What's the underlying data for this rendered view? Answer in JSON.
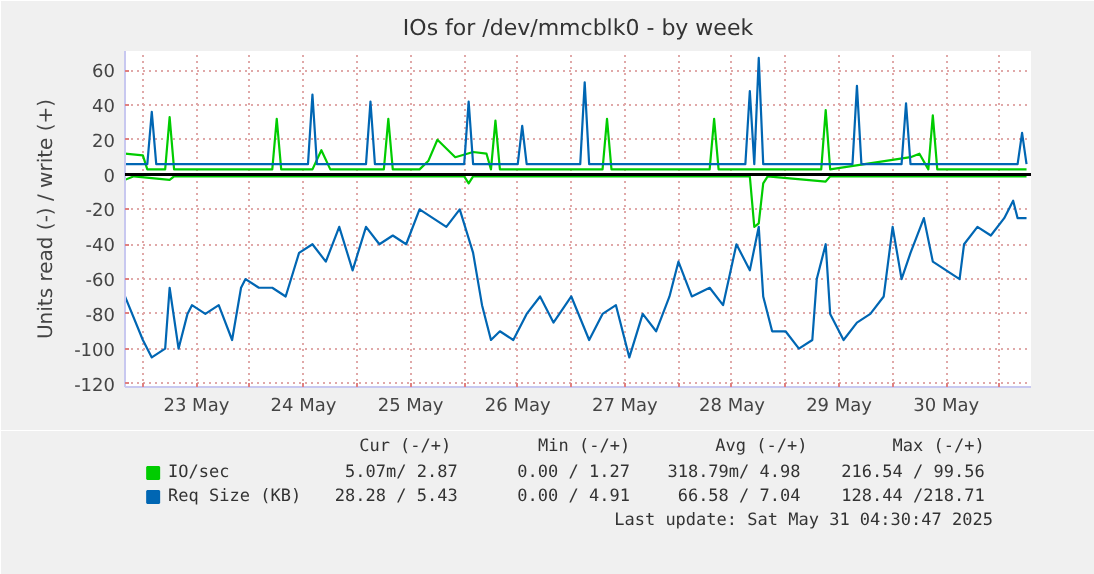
{
  "chart_data": {
    "type": "line",
    "title": "IOs for /dev/mmcblk0 - by week",
    "ylabel": "Units read (-) / write (+)",
    "xlim": [
      "2025-05-22T20:00",
      "2025-05-31T07:00"
    ],
    "xticks": [
      {
        "value": "2025-05-23T00:00",
        "label": null
      },
      {
        "value": "2025-05-23T12:00",
        "label": "23 May"
      },
      {
        "value": "2025-05-24T00:00",
        "label": null
      },
      {
        "value": "2025-05-24T12:00",
        "label": "24 May"
      },
      {
        "value": "2025-05-25T00:00",
        "label": null
      },
      {
        "value": "2025-05-25T12:00",
        "label": "25 May"
      },
      {
        "value": "2025-05-26T00:00",
        "label": null
      },
      {
        "value": "2025-05-26T12:00",
        "label": "26 May"
      },
      {
        "value": "2025-05-27T00:00",
        "label": null
      },
      {
        "value": "2025-05-27T12:00",
        "label": "27 May"
      },
      {
        "value": "2025-05-28T00:00",
        "label": null
      },
      {
        "value": "2025-05-28T12:00",
        "label": "28 May"
      },
      {
        "value": "2025-05-29T00:00",
        "label": null
      },
      {
        "value": "2025-05-29T12:00",
        "label": "29 May"
      },
      {
        "value": "2025-05-30T00:00",
        "label": null
      },
      {
        "value": "2025-05-30T12:00",
        "label": "30 May"
      },
      {
        "value": "2025-05-31T00:00",
        "label": null
      }
    ],
    "ylim": [
      -122,
      71
    ],
    "yticks": [
      -120,
      -100,
      -80,
      -60,
      -40,
      -20,
      0,
      20,
      40,
      60
    ],
    "grid": true,
    "legend": "bottom",
    "line_style": "solid",
    "marker": "none",
    "ref_lines": [
      {
        "axis": "y",
        "value": 0,
        "color": "#000000"
      }
    ],
    "series": [
      {
        "name": "IO/sec",
        "color": "#00cc00",
        "x": [
          "2025-05-22T20:00",
          "2025-05-23T00:00",
          "2025-05-23T01:00",
          "2025-05-23T05:00",
          "2025-05-23T06:00",
          "2025-05-23T07:00",
          "2025-05-24T05:00",
          "2025-05-24T06:00",
          "2025-05-24T07:00",
          "2025-05-24T14:00",
          "2025-05-24T16:00",
          "2025-05-24T18:00",
          "2025-05-25T06:00",
          "2025-05-25T07:00",
          "2025-05-25T08:00",
          "2025-05-25T14:00",
          "2025-05-25T16:00",
          "2025-05-25T18:00",
          "2025-05-25T22:00",
          "2025-05-26T02:00",
          "2025-05-26T05:00",
          "2025-05-26T06:00",
          "2025-05-26T07:00",
          "2025-05-26T08:00",
          "2025-05-27T07:00",
          "2025-05-27T08:00",
          "2025-05-27T09:00",
          "2025-05-28T07:00",
          "2025-05-28T08:00",
          "2025-05-28T09:00",
          "2025-05-29T08:00",
          "2025-05-29T09:00",
          "2025-05-29T10:00",
          "2025-05-30T04:00",
          "2025-05-30T06:00",
          "2025-05-30T08:00",
          "2025-05-30T09:00",
          "2025-05-30T10:00",
          "2025-05-31T06:00"
        ],
        "values": [
          12,
          11,
          3,
          3,
          33,
          3,
          3,
          32,
          3,
          3,
          14,
          3,
          3,
          32,
          3,
          3,
          8,
          20,
          10,
          13,
          12,
          3,
          31,
          3,
          3,
          32,
          3,
          3,
          32,
          3,
          3,
          37,
          3,
          10,
          12,
          3,
          34,
          3,
          3
        ]
      },
      {
        "color": "#00cc00",
        "x": [
          "2025-05-22T20:00",
          "2025-05-22T22:00",
          "2025-05-23T06:00",
          "2025-05-23T07:00",
          "2025-05-26T00:00",
          "2025-05-26T01:00",
          "2025-05-26T02:00",
          "2025-05-28T16:00",
          "2025-05-28T17:00",
          "2025-05-28T18:00",
          "2025-05-28T19:00",
          "2025-05-28T20:00",
          "2025-05-29T09:00",
          "2025-05-29T10:00",
          "2025-05-31T06:00"
        ],
        "values": [
          -3,
          -1,
          -3,
          -1,
          -1,
          -5,
          -1,
          -1,
          -30,
          -28,
          -5,
          -1,
          -4,
          -1,
          -1
        ]
      },
      {
        "name": "Req Size (KB)",
        "color": "#0066b3",
        "x": [
          "2025-05-22T20:00",
          "2025-05-23T01:00",
          "2025-05-23T02:00",
          "2025-05-23T03:00",
          "2025-05-24T13:00",
          "2025-05-24T14:00",
          "2025-05-24T15:00",
          "2025-05-25T02:00",
          "2025-05-25T03:00",
          "2025-05-25T04:00",
          "2025-05-26T00:00",
          "2025-05-26T01:00",
          "2025-05-26T02:00",
          "2025-05-26T12:00",
          "2025-05-26T13:00",
          "2025-05-26T14:00",
          "2025-05-27T02:00",
          "2025-05-27T03:00",
          "2025-05-27T04:00",
          "2025-05-28T15:00",
          "2025-05-28T16:00",
          "2025-05-28T17:00",
          "2025-05-28T18:00",
          "2025-05-28T19:00",
          "2025-05-29T15:00",
          "2025-05-29T16:00",
          "2025-05-29T17:00",
          "2025-05-30T02:00",
          "2025-05-30T03:00",
          "2025-05-30T04:00",
          "2025-05-31T04:00",
          "2025-05-31T05:00",
          "2025-05-31T06:00"
        ],
        "values": [
          6,
          6,
          36,
          6,
          6,
          46,
          6,
          6,
          42,
          6,
          6,
          42,
          6,
          6,
          28,
          6,
          6,
          53,
          6,
          6,
          48,
          6,
          67,
          6,
          6,
          51,
          6,
          6,
          41,
          6,
          6,
          24,
          6
        ]
      },
      {
        "color": "#0066b3",
        "x": [
          "2025-05-22T20:00",
          "2025-05-23T00:00",
          "2025-05-23T02:00",
          "2025-05-23T05:00",
          "2025-05-23T06:00",
          "2025-05-23T08:00",
          "2025-05-23T10:00",
          "2025-05-23T11:00",
          "2025-05-23T14:00",
          "2025-05-23T17:00",
          "2025-05-23T20:00",
          "2025-05-23T22:00",
          "2025-05-23T23:00",
          "2025-05-24T02:00",
          "2025-05-24T05:00",
          "2025-05-24T08:00",
          "2025-05-24T11:00",
          "2025-05-24T14:00",
          "2025-05-24T17:00",
          "2025-05-24T20:00",
          "2025-05-24T23:00",
          "2025-05-25T02:00",
          "2025-05-25T05:00",
          "2025-05-25T08:00",
          "2025-05-25T11:00",
          "2025-05-25T14:00",
          "2025-05-25T17:00",
          "2025-05-25T20:00",
          "2025-05-25T23:00",
          "2025-05-26T02:00",
          "2025-05-26T04:00",
          "2025-05-26T06:00",
          "2025-05-26T08:00",
          "2025-05-26T11:00",
          "2025-05-26T14:00",
          "2025-05-26T17:00",
          "2025-05-26T20:00",
          "2025-05-27T00:00",
          "2025-05-27T04:00",
          "2025-05-27T07:00",
          "2025-05-27T10:00",
          "2025-05-27T13:00",
          "2025-05-27T16:00",
          "2025-05-27T19:00",
          "2025-05-27T22:00",
          "2025-05-28T00:00",
          "2025-05-28T03:00",
          "2025-05-28T07:00",
          "2025-05-28T10:00",
          "2025-05-28T13:00",
          "2025-05-28T16:00",
          "2025-05-28T18:00",
          "2025-05-28T19:00",
          "2025-05-28T21:00",
          "2025-05-29T00:00",
          "2025-05-29T03:00",
          "2025-05-29T06:00",
          "2025-05-29T07:00",
          "2025-05-29T09:00",
          "2025-05-29T10:00",
          "2025-05-29T13:00",
          "2025-05-29T16:00",
          "2025-05-29T19:00",
          "2025-05-29T22:00",
          "2025-05-30T00:00",
          "2025-05-30T02:00",
          "2025-05-30T04:00",
          "2025-05-30T07:00",
          "2025-05-30T09:00",
          "2025-05-30T12:00",
          "2025-05-30T15:00",
          "2025-05-30T16:00",
          "2025-05-30T19:00",
          "2025-05-30T22:00",
          "2025-05-31T01:00",
          "2025-05-31T03:00",
          "2025-05-31T04:00",
          "2025-05-31T06:00"
        ],
        "values": [
          -70,
          -95,
          -105,
          -100,
          -65,
          -100,
          -80,
          -75,
          -80,
          -75,
          -95,
          -65,
          -60,
          -65,
          -65,
          -70,
          -45,
          -40,
          -50,
          -30,
          -55,
          -30,
          -40,
          -35,
          -40,
          -20,
          -25,
          -30,
          -20,
          -45,
          -75,
          -95,
          -90,
          -95,
          -80,
          -70,
          -85,
          -70,
          -95,
          -80,
          -75,
          -105,
          -80,
          -90,
          -70,
          -50,
          -70,
          -65,
          -75,
          -40,
          -55,
          -30,
          -70,
          -90,
          -90,
          -100,
          -95,
          -60,
          -40,
          -80,
          -95,
          -85,
          -80,
          -70,
          -30,
          -60,
          -45,
          -25,
          -50,
          -55,
          -60,
          -40,
          -30,
          -35,
          -25,
          -15,
          -25,
          -25
        ]
      }
    ],
    "annotations": [
      "Cur (-/+)",
      "Min (-/+)",
      "Avg (-/+)",
      "Max (-/+)",
      "5.07m/  2.87",
      "0.00 /  1.27",
      "318.79m/  4.98",
      "216.54 / 99.56",
      "28.28 /  5.43",
      "0.00 /  4.91",
      "66.58 /  7.04",
      "128.44 /218.71",
      "Last update: Sat May 31 04:30:47 2025"
    ]
  }
}
